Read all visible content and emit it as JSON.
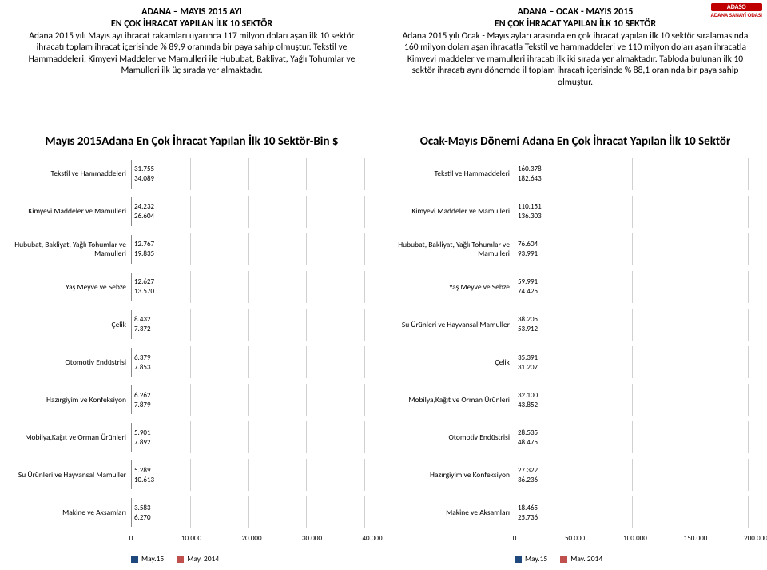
{
  "logo": {
    "top": "ADASO",
    "bottom": "ADANA SANAYİ ODASI"
  },
  "colors": {
    "series1": "#1f497d",
    "series2": "#c0504d",
    "grid": "#d0d0d0",
    "axis": "#888888",
    "text": "#000000",
    "bg": "#ffffff"
  },
  "left": {
    "header_title_1": "ADANA – MAYIS 2015 AYI",
    "header_title_2": "EN ÇOK İHRACAT YAPILAN İLK 10 SEKTÖR",
    "header_body": "Adana 2015 yılı Mayıs ayı ihracat rakamları uyarınca 117 milyon doları aşan ilk 10 sektör ihracatı toplam ihracat içerisinde % 89,9 oranında bir paya sahip olmuştur. Tekstil ve Hammaddeleri, Kimyevi Maddeler ve Mamulleri ile Hububat, Bakliyat, Yağlı Tohumlar ve Mamulleri ilk üç sırada yer almaktadır.",
    "chart_title": "Mayıs 2015Adana En Çok İhracat Yapılan İlk 10 Sektör-Bin $",
    "xmax": 40000,
    "ticks": [
      "0",
      "10.000",
      "20.000",
      "30.000",
      "40.000"
    ],
    "legend": [
      "May.15",
      "May. 2014"
    ],
    "rows": [
      {
        "label": "Tekstil ve Hammaddeleri",
        "v1": 31755,
        "v2": 34089,
        "l1": "31.755",
        "l2": "34.089"
      },
      {
        "label": "Kimyevi Maddeler ve Mamulleri",
        "v1": 24232,
        "v2": 26604,
        "l1": "24.232",
        "l2": "26.604"
      },
      {
        "label": "Hububat, Bakliyat, Yağlı Tohumlar ve Mamulleri",
        "v1": 12767,
        "v2": 19835,
        "l1": "12.767",
        "l2": "19.835"
      },
      {
        "label": "Yaş Meyve ve Sebze",
        "v1": 12627,
        "v2": 13570,
        "l1": "12.627",
        "l2": "13.570"
      },
      {
        "label": "Çelik",
        "v1": 8432,
        "v2": 7372,
        "l1": "8.432",
        "l2": "7.372"
      },
      {
        "label": "Otomotiv Endüstrisi",
        "v1": 6379,
        "v2": 7853,
        "l1": "6.379",
        "l2": "7.853"
      },
      {
        "label": "Hazırgiyim ve Konfeksiyon",
        "v1": 6262,
        "v2": 7879,
        "l1": "6.262",
        "l2": "7.879"
      },
      {
        "label": "Mobilya,Kağıt ve Orman Ürünleri",
        "v1": 5901,
        "v2": 7892,
        "l1": "5.901",
        "l2": "7.892"
      },
      {
        "label": "Su Ürünleri ve Hayvansal Mamuller",
        "v1": 5289,
        "v2": 10613,
        "l1": "5.289",
        "l2": "10.613"
      },
      {
        "label": "Makine ve Aksamları",
        "v1": 3583,
        "v2": 6270,
        "l1": "3.583",
        "l2": "6.270"
      }
    ]
  },
  "right": {
    "header_title_1": "ADANA – OCAK - MAYIS 2015",
    "header_title_2": "EN ÇOK İHRACAT YAPILAN İLK 10 SEKTÖR",
    "header_body": "Adana 2015 yılı Ocak - Mayıs ayları arasında en çok ihracat yapılan ilk 10 sektör sıralamasında 160 milyon doları aşan ihracatla Tekstil ve hammaddeleri ve 110 milyon doları aşan ihracatla Kimyevi maddeler ve mamulleri ihracatı ilk iki sırada yer almaktadır. Tabloda bulunan ilk 10 sektör ihracatı aynı dönemde il toplam ihracatı içerisinde % 88,1 oranında bir paya sahip olmuştur.",
    "chart_title": "Ocak-Mayıs Dönemi Adana En Çok İhracat Yapılan İlk 10 Sektör",
    "xmax": 200000,
    "ticks": [
      "0",
      "50.000",
      "100.000",
      "150.000",
      "200.000"
    ],
    "legend": [
      "May.15",
      "May. 2014"
    ],
    "rows": [
      {
        "label": "Tekstil ve Hammaddeleri",
        "v1": 160378,
        "v2": 182643,
        "l1": "160.378",
        "l2": "182.643"
      },
      {
        "label": "Kimyevi Maddeler ve Mamulleri",
        "v1": 110151,
        "v2": 136303,
        "l1": "110.151",
        "l2": "136.303"
      },
      {
        "label": "Hububat, Bakliyat, Yağlı Tohumlar ve Mamulleri",
        "v1": 76604,
        "v2": 93991,
        "l1": "76.604",
        "l2": "93.991"
      },
      {
        "label": "Yaş Meyve ve Sebze",
        "v1": 59991,
        "v2": 74425,
        "l1": "59.991",
        "l2": "74.425"
      },
      {
        "label": "Su Ürünleri ve Hayvansal Mamuller",
        "v1": 38205,
        "v2": 53912,
        "l1": "38.205",
        "l2": "53.912"
      },
      {
        "label": "Çelik",
        "v1": 35391,
        "v2": 31207,
        "l1": "35.391",
        "l2": "31.207"
      },
      {
        "label": "Mobilya,Kağıt ve Orman Ürünleri",
        "v1": 32100,
        "v2": 43852,
        "l1": "32.100",
        "l2": "43.852"
      },
      {
        "label": "Otomotiv Endüstrisi",
        "v1": 28535,
        "v2": 48475,
        "l1": "28.535",
        "l2": "48.475"
      },
      {
        "label": "Hazırgiyim ve Konfeksiyon",
        "v1": 27322,
        "v2": 36236,
        "l1": "27.322",
        "l2": "36.236"
      },
      {
        "label": "Makine ve Aksamları",
        "v1": 18465,
        "v2": 25736,
        "l1": "18.465",
        "l2": "25.736"
      }
    ]
  }
}
